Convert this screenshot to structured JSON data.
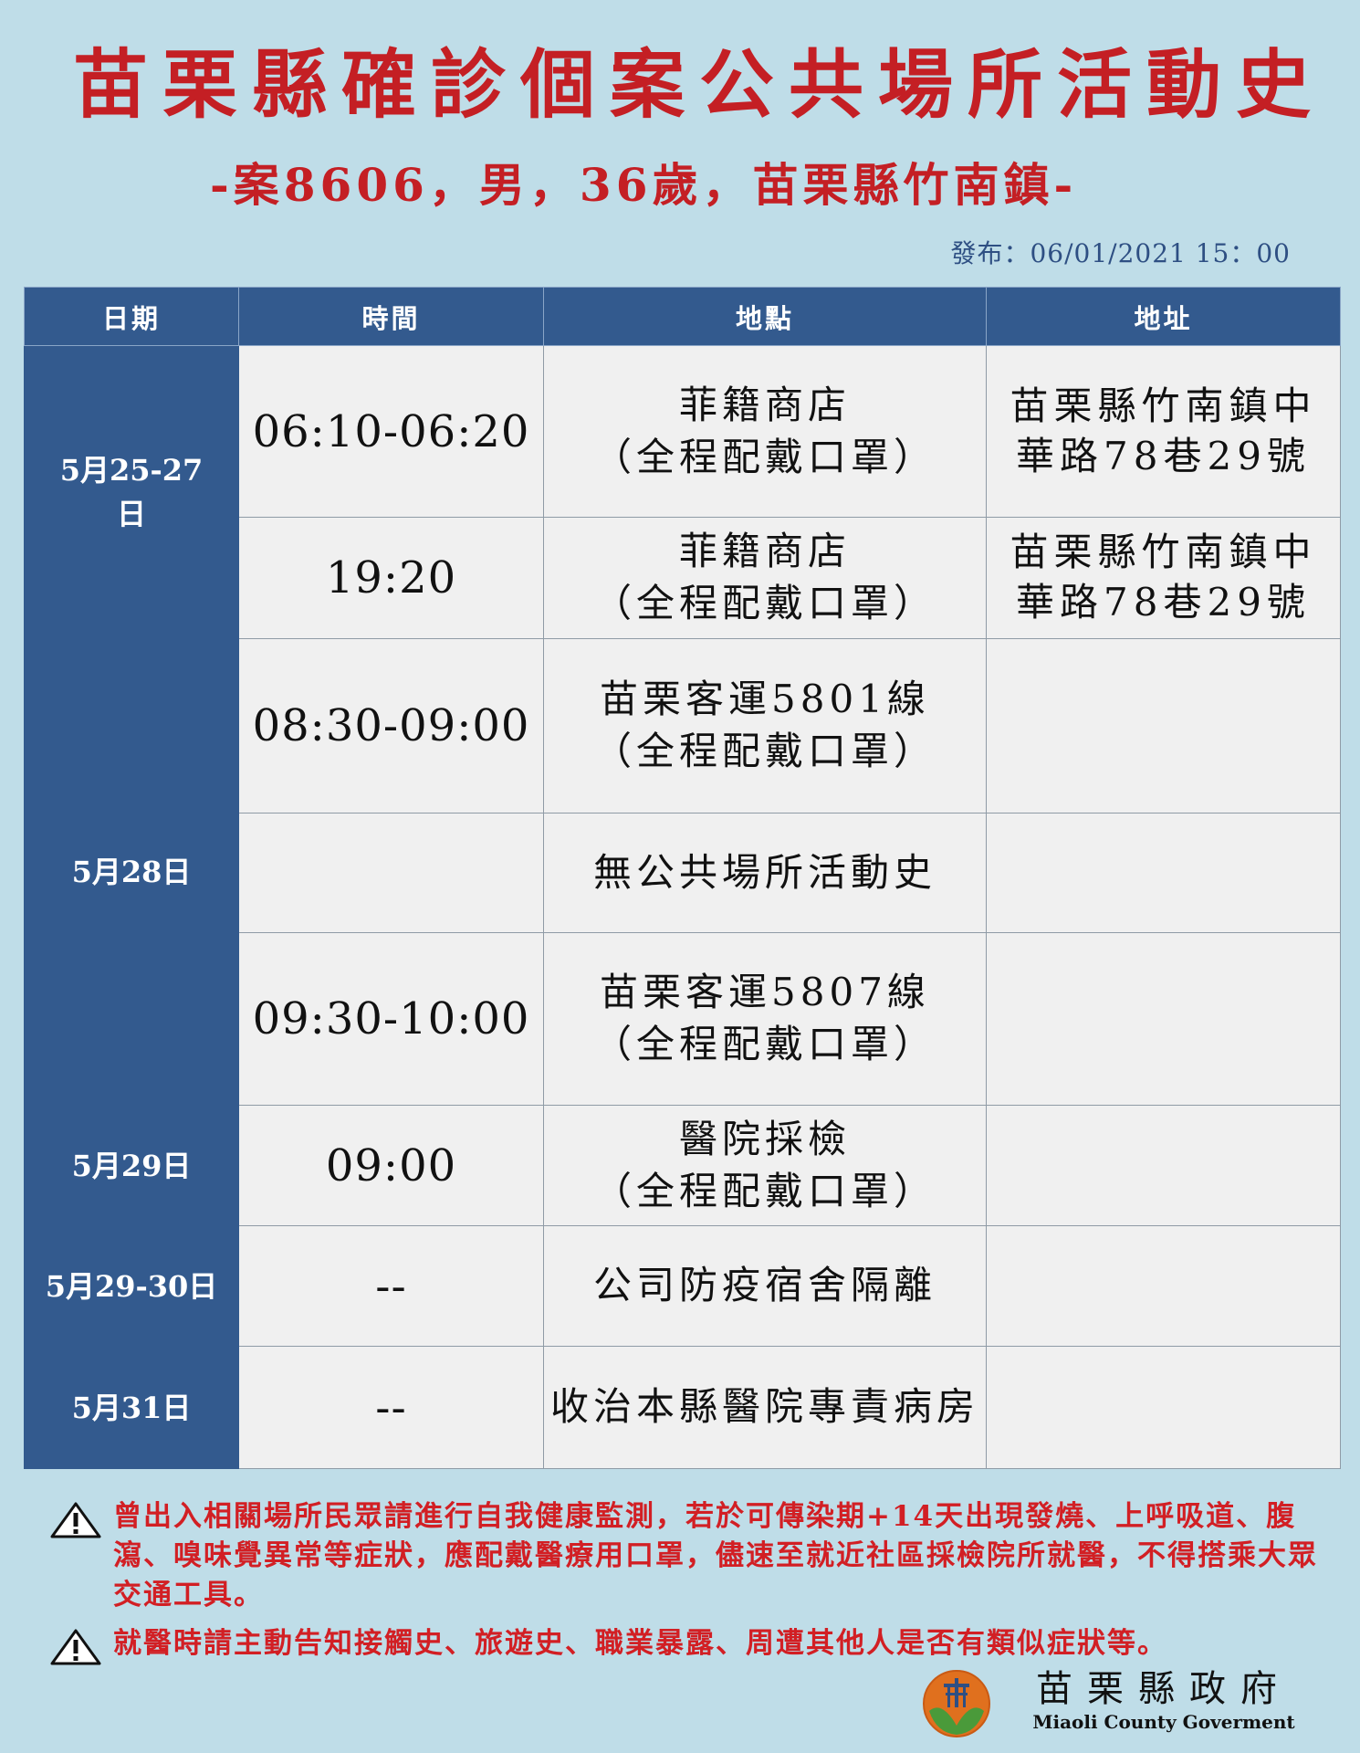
{
  "header": {
    "title": "苗栗縣確診個案公共場所活動史",
    "subtitle": "-案8606，男，36歲，苗栗縣竹南鎮-",
    "publish": "發布：06/01/2021 15：00"
  },
  "table": {
    "columns": [
      "日期",
      "時間",
      "地點",
      "地址"
    ],
    "rows": [
      {
        "date_l1": "5月25-27",
        "date_l2": "日",
        "time": "06:10-06:20",
        "place_l1": "菲籍商店",
        "place_l2": "（全程配戴口罩）",
        "addr_l1": "苗栗縣竹南鎮中",
        "addr_l2": "華路78巷29號"
      },
      {
        "time": "19:20",
        "place_l1": "菲籍商店",
        "place_l2": "（全程配戴口罩）",
        "addr_l1": "苗栗縣竹南鎮中",
        "addr_l2": "華路78巷29號"
      },
      {
        "date_l1": "5月28日",
        "time": "08:30-09:00",
        "place_l1": "苗栗客運5801線",
        "place_l2": "（全程配戴口罩）"
      },
      {
        "time": "",
        "place_l1": "無公共場所活動史"
      },
      {
        "time": "09:30-10:00",
        "place_l1": "苗栗客運5807線",
        "place_l2": "（全程配戴口罩）"
      },
      {
        "date_l1": "5月29日",
        "time": "09:00",
        "place_l1": "醫院採檢",
        "place_l2": "（全程配戴口罩）"
      },
      {
        "date_l1": "5月29-30日",
        "time": "--",
        "place_l1": "公司防疫宿舍隔離"
      },
      {
        "date_l1": "5月31日",
        "time": "--",
        "place_l1": "收治本縣醫院專責病房"
      }
    ]
  },
  "notes": [
    "曾出入相關場所民眾請進行自我健康監測，若於可傳染期+14天出現發燒、上呼吸道、腹瀉、嗅味覺異常等症狀，應配戴醫療用口罩，儘速至就近社區採檢院所就醫，不得搭乘大眾交通工具。",
    "就醫時請主動告知接觸史、旅遊史、職業暴露、周遭其他人是否有類似症狀等。"
  ],
  "footer": {
    "gov_name_zh": "苗栗縣政府",
    "gov_name_en": "Miaoli County Goverment"
  },
  "colors": {
    "title_red": "#c41f24",
    "header_blue": "#335a8e",
    "background": "#bfdde8",
    "cell_bg": "#f0f0f0"
  },
  "icons": [
    "warning-icon",
    "miaoli-county-logo"
  ]
}
